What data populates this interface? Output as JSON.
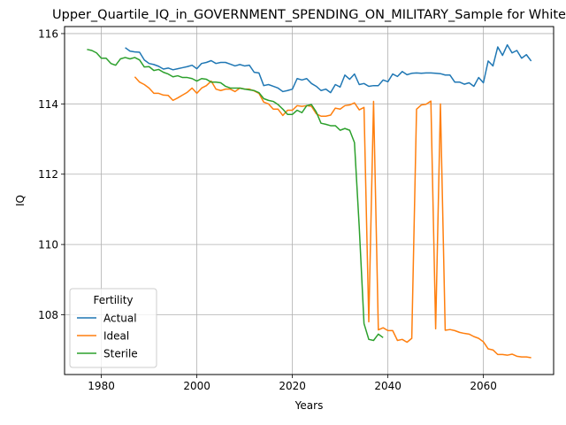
{
  "chart_data": {
    "type": "line",
    "title": "Upper_Quartile_IQ_in_GOVERNMENT_SPENDING_ON_MILITARY_Sample for White",
    "xlabel": "Years",
    "ylabel": "IQ",
    "xlim": [
      1972.3,
      2074.7
    ],
    "ylim": [
      106.3,
      116.2
    ],
    "xticks": [
      1980,
      2000,
      2020,
      2040,
      2060
    ],
    "yticks": [
      108,
      110,
      112,
      114,
      116
    ],
    "grid": true,
    "legend": {
      "title": "Fertility",
      "placement": "lower-left"
    },
    "colors": {
      "Actual": "#1f77b4",
      "Ideal": "#ff7f0e",
      "Sterile": "#2ca02c",
      "grid": "#b0b0b0"
    },
    "series": [
      {
        "name": "Actual",
        "x": [
          1985,
          1986,
          1987,
          1988,
          1989,
          1990,
          1991,
          1992,
          1993,
          1994,
          1995,
          1996,
          1997,
          1998,
          1999,
          2000,
          2001,
          2002,
          2003,
          2004,
          2005,
          2006,
          2007,
          2008,
          2009,
          2010,
          2011,
          2012,
          2013,
          2014,
          2015,
          2016,
          2017,
          2018,
          2019,
          2020,
          2021,
          2022,
          2023,
          2024,
          2025,
          2026,
          2027,
          2028,
          2029,
          2030,
          2031,
          2032,
          2033,
          2034,
          2035,
          2036,
          2037,
          2038,
          2039,
          2040,
          2041,
          2042,
          2043,
          2044,
          2045,
          2046,
          2047,
          2048,
          2049,
          2050,
          2051,
          2052,
          2053,
          2054,
          2055,
          2056,
          2057,
          2058,
          2059,
          2060,
          2061,
          2062,
          2063,
          2064,
          2065,
          2066,
          2067,
          2068,
          2069,
          2070
        ],
        "y": [
          115.6,
          115.5,
          115.48,
          115.47,
          115.25,
          115.15,
          115.12,
          115.07,
          114.99,
          115.02,
          114.97,
          115.0,
          115.03,
          115.06,
          115.1,
          115.0,
          115.15,
          115.18,
          115.23,
          115.15,
          115.18,
          115.18,
          115.13,
          115.08,
          115.12,
          115.08,
          115.1,
          114.9,
          114.88,
          114.52,
          114.55,
          114.5,
          114.45,
          114.35,
          114.38,
          114.42,
          114.72,
          114.68,
          114.72,
          114.58,
          114.5,
          114.38,
          114.42,
          114.32,
          114.55,
          114.48,
          114.82,
          114.7,
          114.85,
          114.55,
          114.58,
          114.5,
          114.52,
          114.52,
          114.68,
          114.63,
          114.85,
          114.78,
          114.92,
          114.83,
          114.87,
          114.88,
          114.87,
          114.88,
          114.88,
          114.87,
          114.86,
          114.82,
          114.82,
          114.62,
          114.62,
          114.56,
          114.6,
          114.5,
          114.75,
          114.6,
          115.22,
          115.08,
          115.62,
          115.38,
          115.68,
          115.45,
          115.52,
          115.3,
          115.4,
          115.22
        ]
      },
      {
        "name": "Ideal",
        "x": [
          1987,
          1988,
          1989,
          1990,
          1991,
          1992,
          1993,
          1994,
          1995,
          1996,
          1997,
          1998,
          1999,
          2000,
          2001,
          2002,
          2003,
          2004,
          2005,
          2006,
          2007,
          2008,
          2009,
          2010,
          2011,
          2012,
          2013,
          2014,
          2015,
          2016,
          2017,
          2018,
          2019,
          2020,
          2021,
          2022,
          2023,
          2024,
          2025,
          2026,
          2027,
          2028,
          2029,
          2030,
          2031,
          2032,
          2033,
          2034,
          2035,
          2036,
          2037,
          2038,
          2039,
          2040,
          2041,
          2042,
          2043,
          2044,
          2045,
          2046,
          2047,
          2048,
          2049,
          2050,
          2051,
          2052,
          2053,
          2054,
          2055,
          2056,
          2057,
          2058,
          2059,
          2060,
          2061,
          2062,
          2063,
          2064,
          2065,
          2066,
          2067,
          2068,
          2069,
          2070
        ],
        "y": [
          114.77,
          114.62,
          114.55,
          114.45,
          114.3,
          114.3,
          114.25,
          114.24,
          114.1,
          114.17,
          114.25,
          114.33,
          114.45,
          114.3,
          114.45,
          114.52,
          114.65,
          114.42,
          114.38,
          114.42,
          114.42,
          114.35,
          114.45,
          114.42,
          114.42,
          114.37,
          114.3,
          114.05,
          114.0,
          113.85,
          113.85,
          113.67,
          113.82,
          113.82,
          113.95,
          113.93,
          113.95,
          113.93,
          113.72,
          113.65,
          113.65,
          113.68,
          113.88,
          113.85,
          113.95,
          113.97,
          114.03,
          113.83,
          113.9,
          107.8,
          114.07,
          107.57,
          107.63,
          107.55,
          107.55,
          107.27,
          107.3,
          107.22,
          107.33,
          113.85,
          113.97,
          113.99,
          114.08,
          107.6,
          114.0,
          107.56,
          107.58,
          107.55,
          107.5,
          107.47,
          107.45,
          107.38,
          107.33,
          107.23,
          107.03,
          107.0,
          106.87,
          106.87,
          106.85,
          106.88,
          106.82,
          106.8,
          106.8,
          106.78
        ]
      },
      {
        "name": "Sterile",
        "x": [
          1977,
          1978,
          1979,
          1980,
          1981,
          1982,
          1983,
          1984,
          1985,
          1986,
          1987,
          1988,
          1989,
          1990,
          1991,
          1992,
          1993,
          1994,
          1995,
          1996,
          1997,
          1998,
          1999,
          2000,
          2001,
          2002,
          2003,
          2004,
          2005,
          2006,
          2007,
          2008,
          2009,
          2010,
          2011,
          2012,
          2013,
          2014,
          2015,
          2016,
          2017,
          2018,
          2019,
          2020,
          2021,
          2022,
          2023,
          2024,
          2025,
          2026,
          2027,
          2028,
          2029,
          2030,
          2031,
          2032,
          2033,
          2034,
          2035,
          2036,
          2037,
          2038,
          2039
        ],
        "y": [
          115.55,
          115.52,
          115.45,
          115.3,
          115.3,
          115.15,
          115.1,
          115.28,
          115.32,
          115.28,
          115.32,
          115.25,
          115.05,
          115.06,
          114.95,
          114.98,
          114.9,
          114.85,
          114.77,
          114.8,
          114.75,
          114.75,
          114.72,
          114.65,
          114.72,
          114.7,
          114.62,
          114.62,
          114.6,
          114.5,
          114.45,
          114.45,
          114.45,
          114.42,
          114.4,
          114.38,
          114.32,
          114.15,
          114.1,
          114.07,
          113.98,
          113.85,
          113.7,
          113.7,
          113.82,
          113.75,
          113.95,
          113.98,
          113.77,
          113.45,
          113.42,
          113.38,
          113.38,
          113.25,
          113.3,
          113.25,
          112.9,
          110.5,
          107.75,
          107.3,
          107.27,
          107.45,
          107.35
        ]
      }
    ]
  }
}
